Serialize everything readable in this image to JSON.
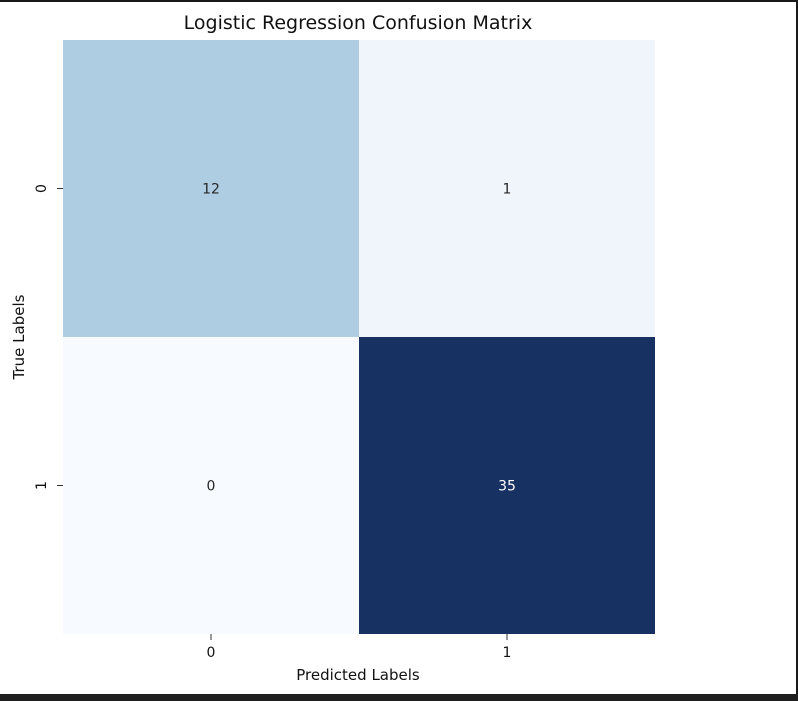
{
  "chart_data": {
    "type": "heatmap",
    "title": "Logistic Regression Confusion Matrix",
    "xlabel": "Predicted Labels",
    "ylabel": "True Labels",
    "x_categories": [
      "0",
      "1"
    ],
    "y_categories": [
      "0",
      "1"
    ],
    "values": [
      [
        12,
        1
      ],
      [
        0,
        35
      ]
    ],
    "colormap": "Blues",
    "value_range": [
      0,
      35
    ],
    "colorbar": false,
    "cell_colors": [
      [
        "#afcde2",
        "#f0f5fb"
      ],
      [
        "#f7fbff",
        "#173163"
      ]
    ],
    "annotation_colors": [
      [
        "#262626",
        "#262626"
      ],
      [
        "#262626",
        "#ffffff"
      ]
    ]
  }
}
